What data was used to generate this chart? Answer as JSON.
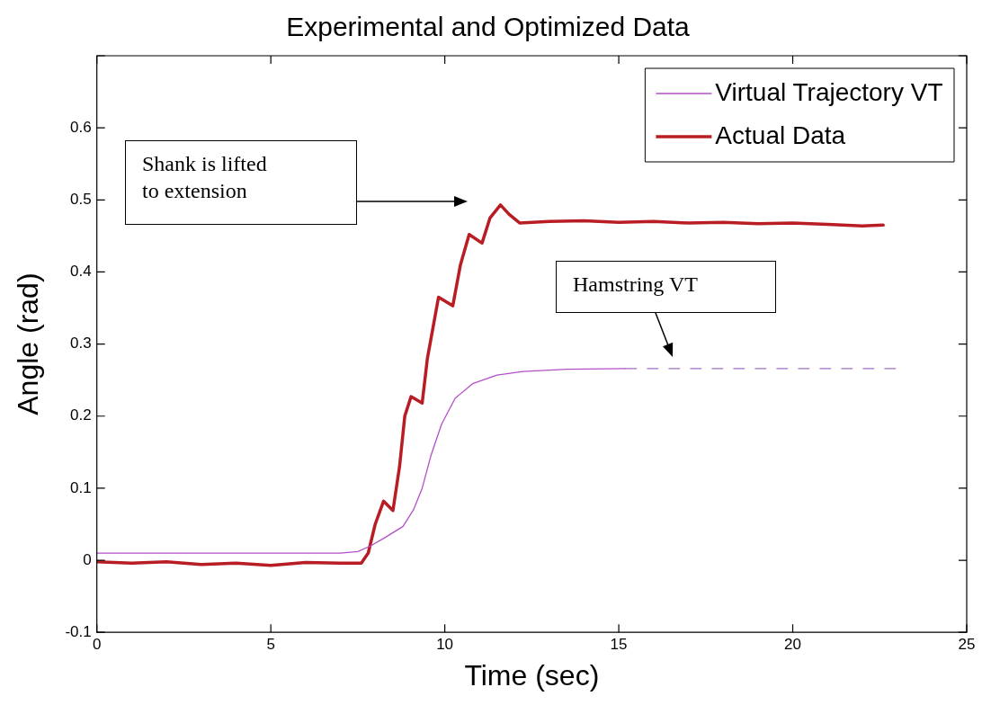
{
  "chart_data": {
    "type": "line",
    "title": "Experimental and Optimized Data",
    "xlabel": "Time (sec)",
    "ylabel": "Angle (rad)",
    "xlim": [
      0,
      25
    ],
    "xticks": [
      0,
      5,
      10,
      15,
      20,
      25
    ],
    "ylim": [
      -0.1,
      0.7
    ],
    "yticks": [
      -0.1,
      0,
      0.1,
      0.2,
      0.3,
      0.4,
      0.5,
      0.6,
      {
        "value": 0.7,
        "label": null
      }
    ],
    "grid": false,
    "legend": "top right",
    "marker": "none",
    "series": [
      {
        "name": "Virtual Trajectory VT",
        "color": "#b44fc8",
        "line_style": "solid",
        "x": [
          0,
          7,
          7.5,
          7.87,
          8.3,
          8.8,
          9.1,
          9.35,
          9.6,
          9.91,
          10.3,
          10.8,
          11.5,
          12.25,
          13.5,
          15.2
        ],
        "values": [
          0.01,
          0.01,
          0.012,
          0.02,
          0.032,
          0.047,
          0.07,
          0.1,
          0.145,
          0.189,
          0.225,
          0.245,
          0.257,
          0.262,
          0.265,
          0.266
        ]
      },
      {
        "name": "Actual Data",
        "color": "#b81d24",
        "line_style": "solid",
        "x": [
          0,
          1,
          2,
          3,
          4,
          5,
          6,
          7,
          7.6,
          7.8,
          8.0,
          8.24,
          8.51,
          8.7,
          8.85,
          9.03,
          9.35,
          9.5,
          9.82,
          10.23,
          10.45,
          10.7,
          11.07,
          11.3,
          11.6,
          11.85,
          12.15,
          13,
          14,
          15,
          16,
          17,
          18,
          19,
          20,
          21,
          22,
          22.6
        ],
        "values": [
          -0.002,
          -0.004,
          -0.002,
          -0.006,
          -0.004,
          -0.007,
          -0.003,
          -0.004,
          -0.004,
          0.01,
          0.05,
          0.082,
          0.069,
          0.13,
          0.2,
          0.227,
          0.218,
          0.28,
          0.365,
          0.353,
          0.41,
          0.452,
          0.44,
          0.475,
          0.493,
          0.48,
          0.468,
          0.47,
          0.471,
          0.469,
          0.47,
          0.468,
          0.469,
          0.467,
          0.468,
          0.466,
          0.464,
          0.465
        ]
      },
      {
        "color": "#a070c0",
        "line_style": "dashed",
        "x": [
          15.2,
          23
        ],
        "values": [
          0.266,
          0.266
        ]
      }
    ],
    "annotations": [
      "Shank is lifted to extension",
      "Hamstring VT"
    ]
  }
}
